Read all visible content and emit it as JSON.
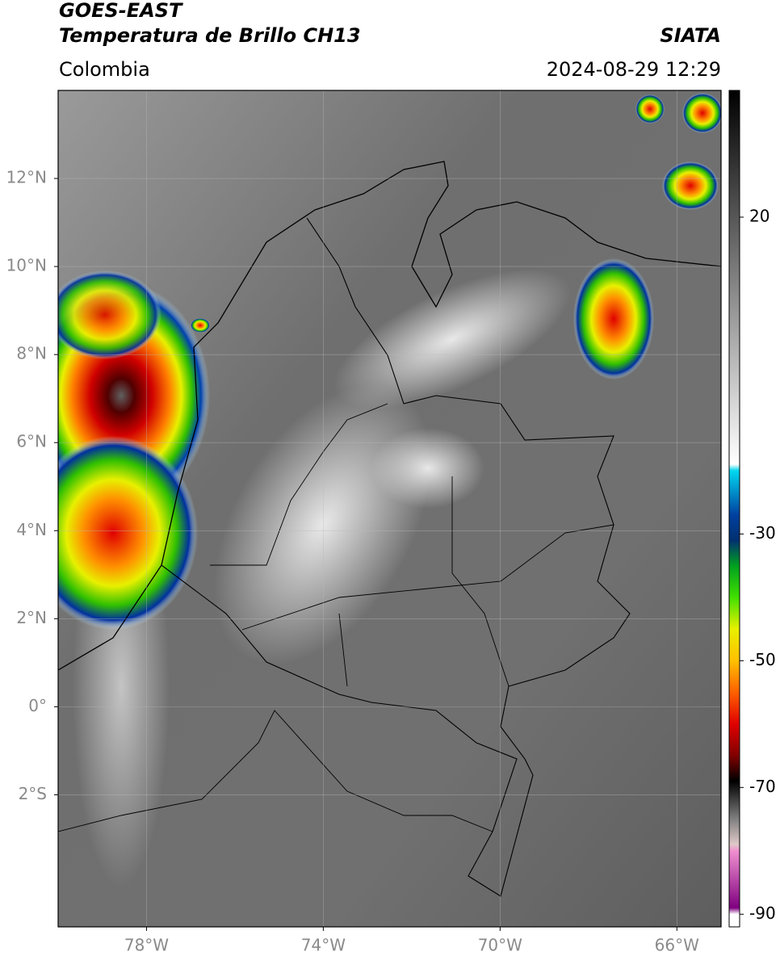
{
  "header": {
    "title_line1": "GOES-EAST",
    "title_line2": "Temperatura de Brillo CH13",
    "region": "Colombia",
    "source": "SIATA",
    "datetime": "2024-08-29 12:29"
  },
  "map": {
    "lon_range": [
      -80,
      -65
    ],
    "lat_range": [
      -5,
      14
    ],
    "lon_ticks": [
      {
        "value": -78,
        "label": "78°W"
      },
      {
        "value": -74,
        "label": "74°W"
      },
      {
        "value": -70,
        "label": "70°W"
      },
      {
        "value": -66,
        "label": "66°W"
      }
    ],
    "lat_ticks": [
      {
        "value": 12,
        "label": "12°N"
      },
      {
        "value": 10,
        "label": "10°N"
      },
      {
        "value": 8,
        "label": "8°N"
      },
      {
        "value": 6,
        "label": "6°N"
      },
      {
        "value": 4,
        "label": "4°N"
      },
      {
        "value": 2,
        "label": "2°N"
      },
      {
        "value": 0,
        "label": "0°"
      },
      {
        "value": -2,
        "label": "2°S"
      }
    ],
    "grid": true
  },
  "colorbar": {
    "range": [
      -92,
      40
    ],
    "ticks": [
      20,
      -30,
      -50,
      -70,
      -90
    ],
    "stops": [
      {
        "value": 40,
        "color": "#000000"
      },
      {
        "value": -19,
        "color": "#ffffff"
      },
      {
        "value": -20,
        "color": "#00d8f0"
      },
      {
        "value": -27,
        "color": "#0040a0"
      },
      {
        "value": -31,
        "color": "#003070"
      },
      {
        "value": -35,
        "color": "#00a020"
      },
      {
        "value": -40,
        "color": "#40e000"
      },
      {
        "value": -45,
        "color": "#e8f000"
      },
      {
        "value": -50,
        "color": "#ffc000"
      },
      {
        "value": -55,
        "color": "#ff6000"
      },
      {
        "value": -60,
        "color": "#e00000"
      },
      {
        "value": -65,
        "color": "#800000"
      },
      {
        "value": -69,
        "color": "#000000"
      },
      {
        "value": -75,
        "color": "#808080"
      },
      {
        "value": -79,
        "color": "#e0c8c8"
      },
      {
        "value": -80,
        "color": "#f090d0"
      },
      {
        "value": -89,
        "color": "#800080"
      },
      {
        "value": -90,
        "color": "#ffffff"
      }
    ]
  }
}
